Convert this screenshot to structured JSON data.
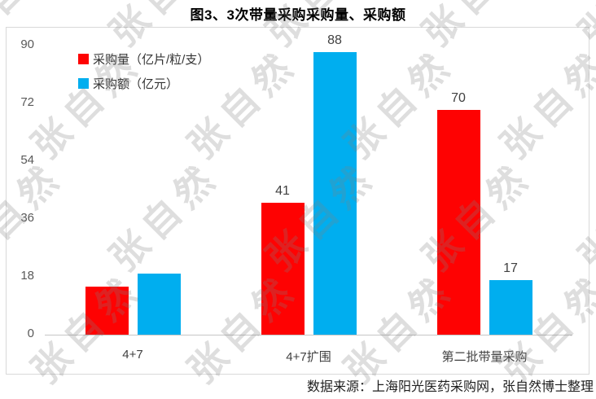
{
  "title": "图3、3次带量采购采购量、采购额",
  "watermark": {
    "text": "张自然"
  },
  "source_note": "数据来源：上海阳光医药采购网，张自然博士整理",
  "colors": {
    "volume_red": "#fe0202",
    "amount_blue": "#00aeef",
    "border_gray": "#d9d9d9"
  },
  "chart_data": {
    "type": "bar",
    "title": "图3、3次带量采购采购量、采购额",
    "categories": [
      "4+7",
      "4+7扩围",
      "第二批带量采购"
    ],
    "series": [
      {
        "name": "采购量（亿片/粒/支）",
        "color": "#fe0202",
        "values": [
          15,
          41,
          70
        ],
        "labels": [
          "",
          "41",
          "70"
        ]
      },
      {
        "name": "采购额（亿元）",
        "color": "#00aeef",
        "values": [
          19,
          88,
          17
        ],
        "labels": [
          "",
          "88",
          "17"
        ]
      }
    ],
    "yticks": [
      0,
      18,
      36,
      54,
      72,
      90
    ],
    "ylim": [
      0,
      90
    ],
    "grid": false,
    "legend_position": "top-left",
    "xlabel": "",
    "ylabel": ""
  }
}
